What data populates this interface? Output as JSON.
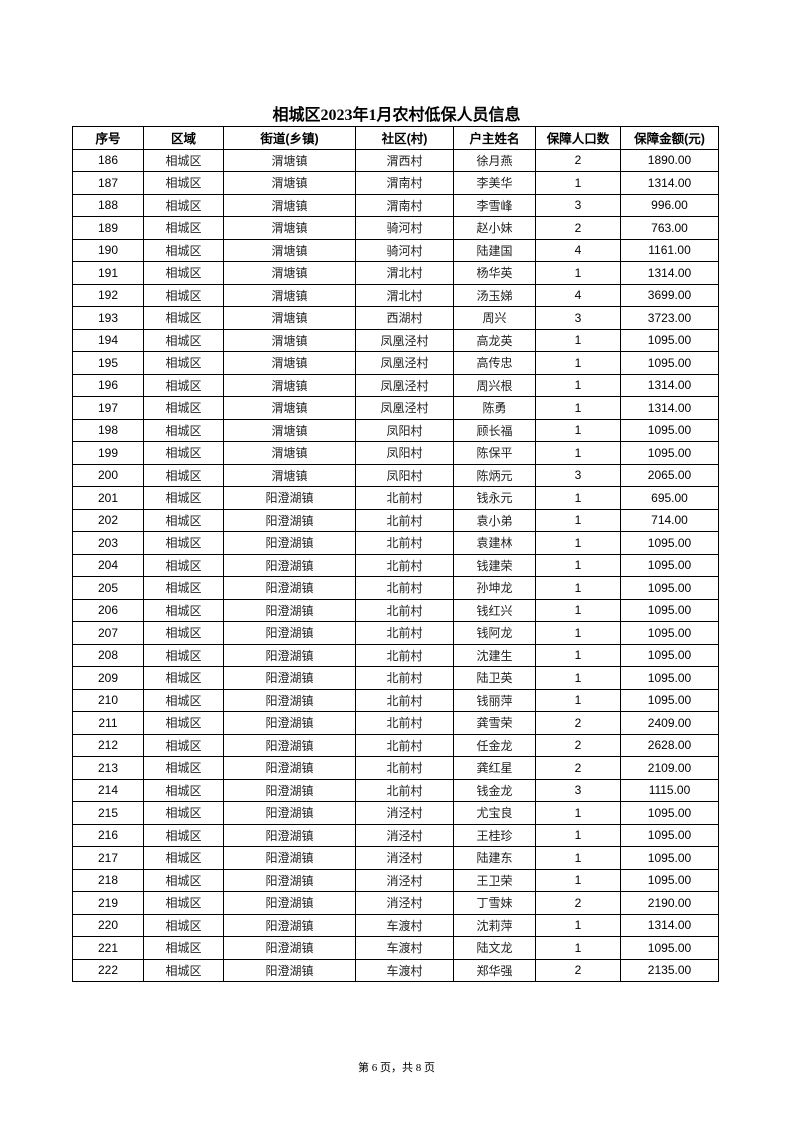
{
  "title": "相城区2023年1月农村低保人员信息",
  "headers": [
    "序号",
    "区域",
    "街道(乡镇)",
    "社区(村)",
    "户主姓名",
    "保障人口数",
    "保障金额(元)"
  ],
  "rows": [
    [
      "186",
      "相城区",
      "渭塘镇",
      "渭西村",
      "徐月燕",
      "2",
      "1890.00"
    ],
    [
      "187",
      "相城区",
      "渭塘镇",
      "渭南村",
      "李美华",
      "1",
      "1314.00"
    ],
    [
      "188",
      "相城区",
      "渭塘镇",
      "渭南村",
      "李雪峰",
      "3",
      "996.00"
    ],
    [
      "189",
      "相城区",
      "渭塘镇",
      "骑河村",
      "赵小妹",
      "2",
      "763.00"
    ],
    [
      "190",
      "相城区",
      "渭塘镇",
      "骑河村",
      "陆建国",
      "4",
      "1161.00"
    ],
    [
      "191",
      "相城区",
      "渭塘镇",
      "渭北村",
      "杨华英",
      "1",
      "1314.00"
    ],
    [
      "192",
      "相城区",
      "渭塘镇",
      "渭北村",
      "汤玉娣",
      "4",
      "3699.00"
    ],
    [
      "193",
      "相城区",
      "渭塘镇",
      "西湖村",
      "周兴",
      "3",
      "3723.00"
    ],
    [
      "194",
      "相城区",
      "渭塘镇",
      "凤凰泾村",
      "高龙英",
      "1",
      "1095.00"
    ],
    [
      "195",
      "相城区",
      "渭塘镇",
      "凤凰泾村",
      "高传忠",
      "1",
      "1095.00"
    ],
    [
      "196",
      "相城区",
      "渭塘镇",
      "凤凰泾村",
      "周兴根",
      "1",
      "1314.00"
    ],
    [
      "197",
      "相城区",
      "渭塘镇",
      "凤凰泾村",
      "陈勇",
      "1",
      "1314.00"
    ],
    [
      "198",
      "相城区",
      "渭塘镇",
      "凤阳村",
      "顾长福",
      "1",
      "1095.00"
    ],
    [
      "199",
      "相城区",
      "渭塘镇",
      "凤阳村",
      "陈保平",
      "1",
      "1095.00"
    ],
    [
      "200",
      "相城区",
      "渭塘镇",
      "凤阳村",
      "陈炳元",
      "3",
      "2065.00"
    ],
    [
      "201",
      "相城区",
      "阳澄湖镇",
      "北前村",
      "钱永元",
      "1",
      "695.00"
    ],
    [
      "202",
      "相城区",
      "阳澄湖镇",
      "北前村",
      "袁小弟",
      "1",
      "714.00"
    ],
    [
      "203",
      "相城区",
      "阳澄湖镇",
      "北前村",
      "袁建林",
      "1",
      "1095.00"
    ],
    [
      "204",
      "相城区",
      "阳澄湖镇",
      "北前村",
      "钱建荣",
      "1",
      "1095.00"
    ],
    [
      "205",
      "相城区",
      "阳澄湖镇",
      "北前村",
      "孙坤龙",
      "1",
      "1095.00"
    ],
    [
      "206",
      "相城区",
      "阳澄湖镇",
      "北前村",
      "钱红兴",
      "1",
      "1095.00"
    ],
    [
      "207",
      "相城区",
      "阳澄湖镇",
      "北前村",
      "钱阿龙",
      "1",
      "1095.00"
    ],
    [
      "208",
      "相城区",
      "阳澄湖镇",
      "北前村",
      "沈建生",
      "1",
      "1095.00"
    ],
    [
      "209",
      "相城区",
      "阳澄湖镇",
      "北前村",
      "陆卫英",
      "1",
      "1095.00"
    ],
    [
      "210",
      "相城区",
      "阳澄湖镇",
      "北前村",
      "钱丽萍",
      "1",
      "1095.00"
    ],
    [
      "211",
      "相城区",
      "阳澄湖镇",
      "北前村",
      "龚雪荣",
      "2",
      "2409.00"
    ],
    [
      "212",
      "相城区",
      "阳澄湖镇",
      "北前村",
      "任金龙",
      "2",
      "2628.00"
    ],
    [
      "213",
      "相城区",
      "阳澄湖镇",
      "北前村",
      "龚红星",
      "2",
      "2109.00"
    ],
    [
      "214",
      "相城区",
      "阳澄湖镇",
      "北前村",
      "钱金龙",
      "3",
      "1115.00"
    ],
    [
      "215",
      "相城区",
      "阳澄湖镇",
      "消泾村",
      "尤宝良",
      "1",
      "1095.00"
    ],
    [
      "216",
      "相城区",
      "阳澄湖镇",
      "消泾村",
      "王桂珍",
      "1",
      "1095.00"
    ],
    [
      "217",
      "相城区",
      "阳澄湖镇",
      "消泾村",
      "陆建东",
      "1",
      "1095.00"
    ],
    [
      "218",
      "相城区",
      "阳澄湖镇",
      "消泾村",
      "王卫荣",
      "1",
      "1095.00"
    ],
    [
      "219",
      "相城区",
      "阳澄湖镇",
      "消泾村",
      "丁雪妹",
      "2",
      "2190.00"
    ],
    [
      "220",
      "相城区",
      "阳澄湖镇",
      "车渡村",
      "沈莉萍",
      "1",
      "1314.00"
    ],
    [
      "221",
      "相城区",
      "阳澄湖镇",
      "车渡村",
      "陆文龙",
      "1",
      "1095.00"
    ],
    [
      "222",
      "相城区",
      "阳澄湖镇",
      "车渡村",
      "郑华强",
      "2",
      "2135.00"
    ]
  ],
  "footer": "第 6 页，共 8 页"
}
